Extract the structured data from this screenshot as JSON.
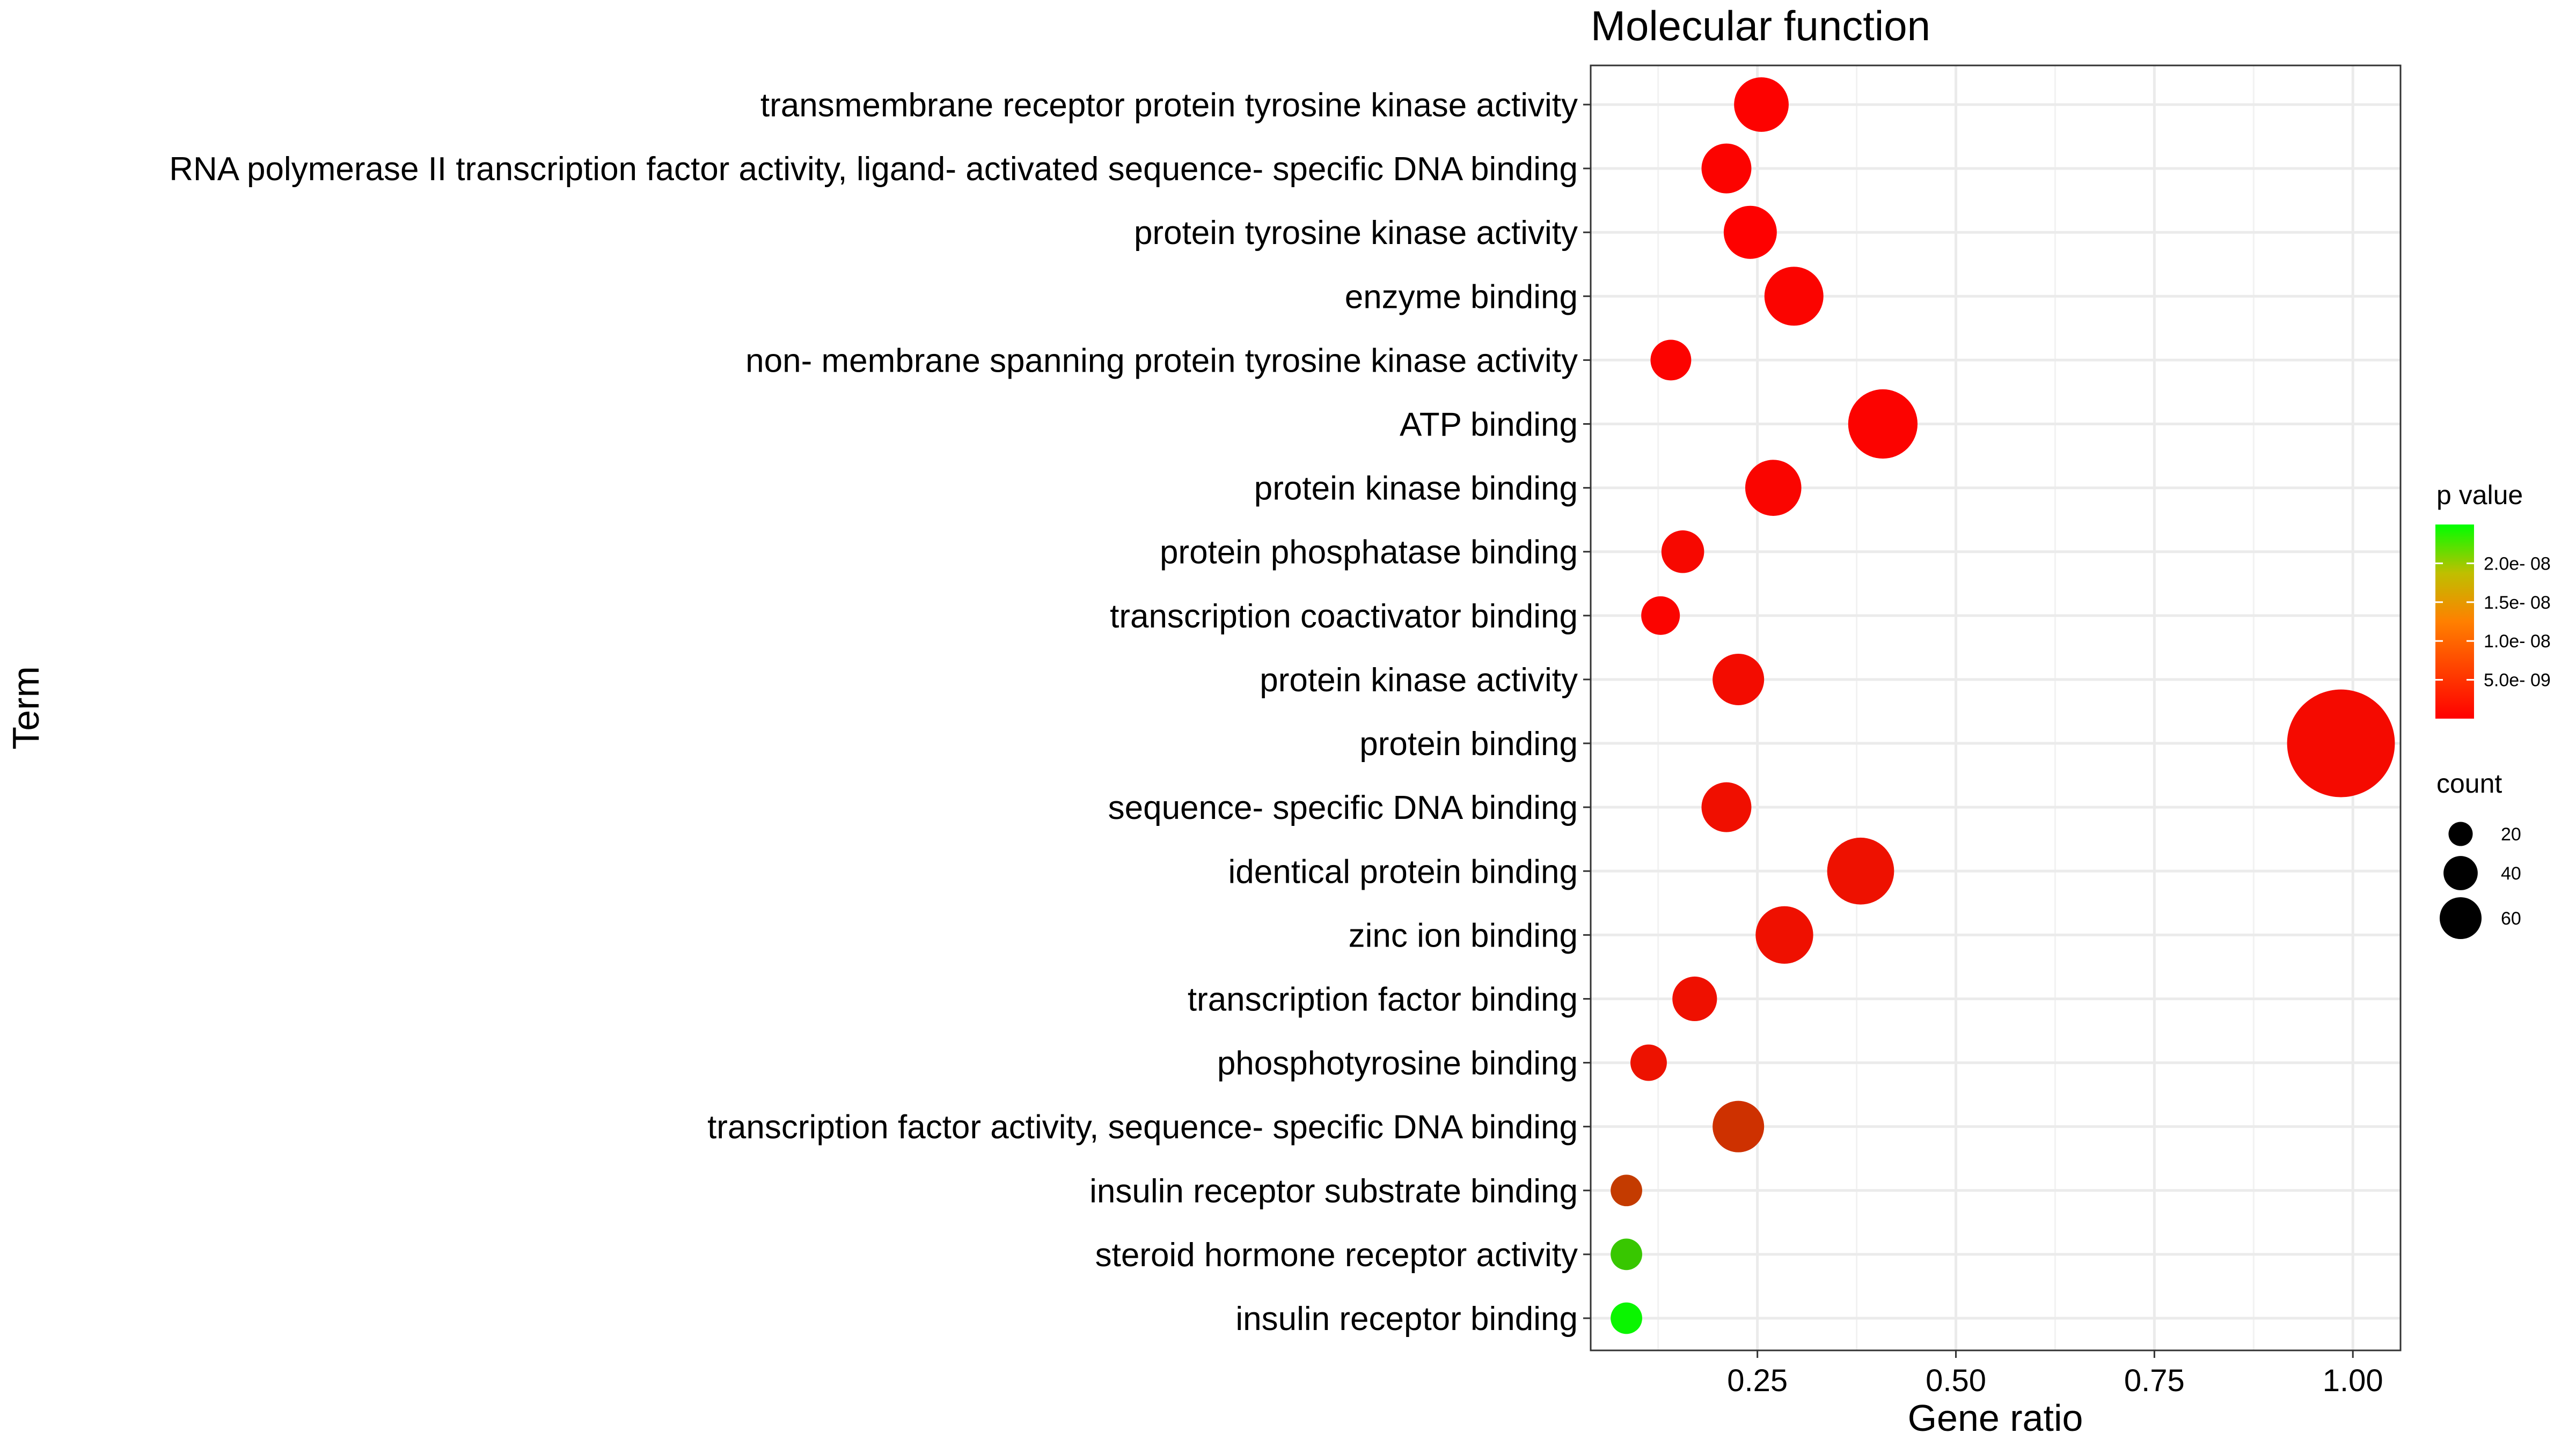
{
  "chart_data": {
    "type": "scatter",
    "title": "Molecular function",
    "xlabel": "Gene ratio",
    "ylabel": "Term",
    "xlim": [
      0.04,
      1.06
    ],
    "x_ticks": [
      "0.25",
      "0.50",
      "0.75",
      "1.00"
    ],
    "x_tick_values": [
      0.25,
      0.5,
      0.75,
      1.0
    ],
    "grid": true,
    "categories": [
      "transmembrane receptor protein tyrosine kinase activity",
      "RNA polymerase II transcription factor activity, ligand- activated sequence- specific DNA binding",
      "protein tyrosine kinase activity",
      "enzyme binding",
      "non- membrane spanning protein tyrosine kinase activity",
      "ATP binding",
      "protein kinase binding",
      "protein phosphatase binding",
      "transcription coactivator binding",
      "protein kinase activity",
      "protein binding",
      "sequence- specific DNA binding",
      "identical protein binding",
      "zinc ion binding",
      "transcription factor binding",
      "phosphotyrosine binding",
      "transcription factor activity, sequence- specific DNA binding",
      "insulin receptor substrate binding",
      "steroid hormone receptor activity",
      "insulin receptor binding"
    ],
    "x": [
      0.255,
      0.211,
      0.241,
      0.296,
      0.141,
      0.408,
      0.27,
      0.156,
      0.128,
      0.226,
      0.985,
      0.211,
      0.38,
      0.284,
      0.171,
      0.113,
      0.226,
      0.085,
      0.085,
      0.085
    ],
    "count": [
      18,
      15,
      17,
      21,
      10,
      29,
      19,
      11,
      9,
      16,
      70,
      15,
      27,
      20,
      12,
      8,
      16,
      6,
      6,
      6
    ],
    "p_value": [
      2e-10,
      3e-10,
      1e-10,
      4e-10,
      3e-10,
      3e-10,
      5e-10,
      8e-10,
      4e-10,
      1.2e-09,
      1e-09,
      1.5e-09,
      1.7e-09,
      1.6e-09,
      1.6e-09,
      1.8e-09,
      4.8e-09,
      5.8e-09,
      1.95e-08,
      2.4e-08
    ],
    "color_legend": {
      "title": "p value",
      "tick_labels": [
        "2.0e- 08",
        "1.5e- 08",
        "1.0e- 08",
        "5.0e- 09"
      ],
      "tick_values": [
        2e-08,
        1.5e-08,
        1e-08,
        5e-09
      ],
      "range": [
        0,
        2.5e-08
      ],
      "low_color": "#ff0000",
      "high_color": "#00ff00"
    },
    "size_legend": {
      "title": "count",
      "labels": [
        "20",
        "40",
        "60"
      ],
      "values": [
        20,
        40,
        60
      ]
    },
    "legend_position": "right",
    "point_color_low": "#ff0000",
    "point_color_high": "#00ff00"
  }
}
